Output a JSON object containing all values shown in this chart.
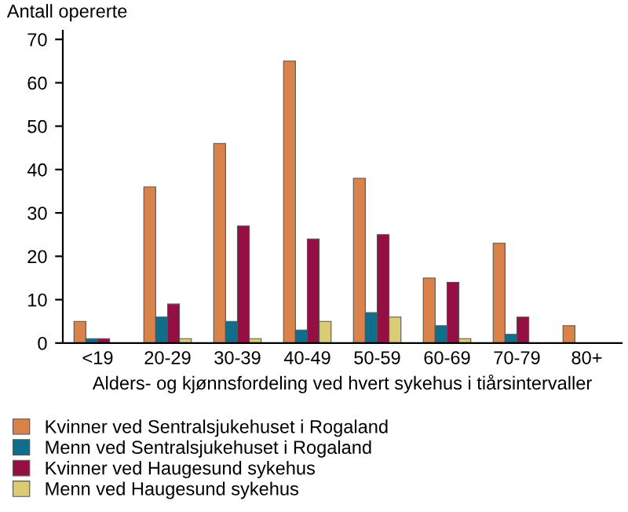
{
  "chart_data": {
    "type": "bar",
    "ylabel": "Antall opererte",
    "xlabel": "Alders- og kjønnsfordeling ved hvert sykehus i tiårsintervaller",
    "categories": [
      "<19",
      "20-29",
      "30-39",
      "40-49",
      "50-59",
      "60-69",
      "70-79",
      "80+"
    ],
    "series": [
      {
        "name": "Kvinner ved Sentralsjukehuset i Rogaland",
        "color": "#d9824a",
        "values": [
          5,
          36,
          46,
          65,
          38,
          15,
          23,
          4
        ]
      },
      {
        "name": "Menn ved Sentralsjukehuset i Rogaland",
        "color": "#0f6e8c",
        "values": [
          1,
          6,
          5,
          3,
          7,
          4,
          2,
          0
        ]
      },
      {
        "name": "Kvinner ved Haugesund sykehus",
        "color": "#960f44",
        "values": [
          1,
          9,
          27,
          24,
          25,
          14,
          6,
          0
        ]
      },
      {
        "name": "Menn ved Haugesund sykehus",
        "color": "#d9cc73",
        "values": [
          0,
          1,
          1,
          5,
          6,
          1,
          0,
          0
        ]
      }
    ],
    "ylim": [
      0,
      72
    ],
    "yticks": [
      0,
      10,
      20,
      30,
      40,
      50,
      60,
      70
    ],
    "grid": false,
    "legend": "bottom"
  }
}
